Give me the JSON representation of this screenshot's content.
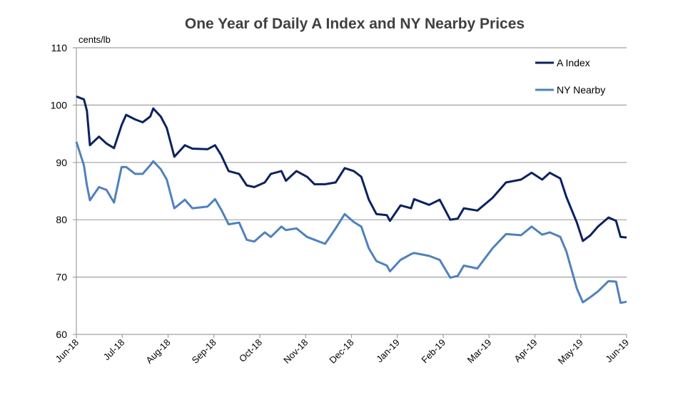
{
  "chart_data": {
    "type": "line",
    "title": "One Year of Daily A Index and NY Nearby Prices",
    "ylabel": "cents/lb",
    "ylim": [
      60,
      110
    ],
    "yticks": [
      60,
      70,
      80,
      90,
      100,
      110
    ],
    "xlim": [
      "2018-06-01",
      "2019-06-01"
    ],
    "xtick_labels": [
      "Jun-18",
      "Jul-18",
      "Aug-18",
      "Sep-18",
      "Oct-18",
      "Nov-18",
      "Dec-18",
      "Jan-19",
      "Feb-19",
      "Mar-19",
      "Apr-19",
      "May-19",
      "Jun-19"
    ],
    "grid": "horizontal",
    "legend_position": "top-right",
    "x": [
      "2018-06-01",
      "2018-06-06",
      "2018-06-08",
      "2018-06-10",
      "2018-06-16",
      "2018-06-21",
      "2018-06-26",
      "2018-07-01",
      "2018-07-04",
      "2018-07-10",
      "2018-07-15",
      "2018-07-20",
      "2018-07-22",
      "2018-07-27",
      "2018-07-31",
      "2018-08-05",
      "2018-08-12",
      "2018-08-17",
      "2018-08-27",
      "2018-09-01",
      "2018-09-05",
      "2018-09-10",
      "2018-09-17",
      "2018-09-22",
      "2018-09-27",
      "2018-10-04",
      "2018-10-08",
      "2018-10-15",
      "2018-10-18",
      "2018-10-25",
      "2018-11-01",
      "2018-11-06",
      "2018-11-13",
      "2018-11-20",
      "2018-11-26",
      "2018-12-02",
      "2018-12-07",
      "2018-12-12",
      "2018-12-17",
      "2018-12-24",
      "2018-12-26",
      "2019-01-02",
      "2019-01-09",
      "2019-01-11",
      "2019-01-21",
      "2019-01-28",
      "2019-02-04",
      "2019-02-09",
      "2019-02-13",
      "2019-02-22",
      "2019-03-04",
      "2019-03-13",
      "2019-03-23",
      "2019-03-30",
      "2019-04-06",
      "2019-04-11",
      "2019-04-18",
      "2019-04-22",
      "2019-04-29",
      "2019-05-03",
      "2019-05-08",
      "2019-05-13",
      "2019-05-20",
      "2019-05-25",
      "2019-05-28",
      "2019-06-01"
    ],
    "series": [
      {
        "name": "A Index",
        "color": "#0b2260",
        "values": [
          101.5,
          101,
          99,
          93,
          94.5,
          93.3,
          92.5,
          96.5,
          98.3,
          97.5,
          97,
          98,
          99.4,
          98,
          96,
          91,
          93,
          92.4,
          92.3,
          93,
          91.3,
          88.5,
          88,
          86,
          85.7,
          86.5,
          88,
          88.5,
          86.8,
          88.5,
          87.5,
          86.2,
          86.2,
          86.5,
          89,
          88.5,
          87.5,
          83.5,
          81,
          80.8,
          79.8,
          82.5,
          82,
          83.6,
          82.6,
          83.5,
          80,
          80.2,
          82,
          81.6,
          83.8,
          86.5,
          87,
          88.2,
          87,
          88.2,
          87.2,
          84,
          79.5,
          76.3,
          77.3,
          78.8,
          80.4,
          79.8,
          77,
          76.9
        ]
      },
      {
        "name": "NY Nearby",
        "color": "#4f81bd",
        "values": [
          93.6,
          89.5,
          86,
          83.4,
          85.7,
          85.2,
          83,
          89.2,
          89.2,
          88,
          88,
          89.5,
          90.2,
          88.8,
          87,
          82,
          83.5,
          82,
          82.3,
          83.6,
          81.8,
          79.2,
          79.5,
          76.5,
          76.2,
          77.8,
          77,
          78.8,
          78.2,
          78.5,
          77,
          76.5,
          75.8,
          78.5,
          81,
          79.6,
          78.8,
          75,
          72.8,
          72,
          71,
          73,
          74,
          74.2,
          73.7,
          73,
          69.9,
          70.2,
          72,
          71.5,
          75,
          77.5,
          77.3,
          78.8,
          77.4,
          77.8,
          77,
          74.5,
          68,
          65.6,
          66.5,
          67.5,
          69.3,
          69.2,
          65.5,
          65.7
        ]
      }
    ]
  }
}
